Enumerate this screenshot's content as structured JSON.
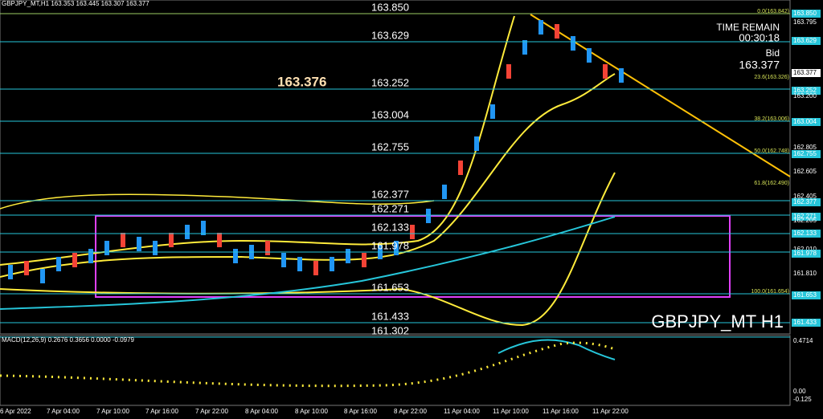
{
  "header": "GBPJPY_MT,H1  163.353 163.445 163.307 163.377",
  "big_price": "163.376",
  "symbol": "GBPJPY_MT H1",
  "time_remain": {
    "label": "TIME REMAIN",
    "time": "00:30:18",
    "bid_label": "Bid",
    "bid": "163.377"
  },
  "macd_label": "MACD(12,26,9) 0.2676 0.3656 0.0000 -0.0979",
  "levels": [
    "163.850",
    "163.629",
    "163.252",
    "163.004",
    "162.755",
    "162.377",
    "162.271",
    "162.133",
    "161.978",
    "161.653",
    "161.433",
    "161.302"
  ],
  "fib_labels": [
    "0.0(163.842)",
    "23.6(163.326)",
    "38.2(163.006)",
    "50.0(162.748)",
    "61.8(162.490)",
    "100.0(161.654)"
  ],
  "price_axis": [
    "163.850",
    "163.795",
    "163.629",
    "163.377",
    "163.252",
    "163.200",
    "163.004",
    "162.805",
    "162.755",
    "162.605",
    "162.405",
    "162.377",
    "162.271",
    "162.205",
    "162.133",
    "162.010",
    "161.978",
    "161.810",
    "161.653",
    "161.433"
  ],
  "macd_axis": [
    "0.4714",
    "0.00",
    "-0.125"
  ],
  "time_axis": [
    "6 Apr 2022",
    "7 Apr 04:00",
    "7 Apr 10:00",
    "7 Apr 16:00",
    "7 Apr 22:00",
    "8 Apr 04:00",
    "8 Apr 10:00",
    "8 Apr 16:00",
    "8 Apr 22:00",
    "11 Apr 04:00",
    "11 Apr 10:00",
    "11 Apr 16:00",
    "11 Apr 22:00"
  ]
}
